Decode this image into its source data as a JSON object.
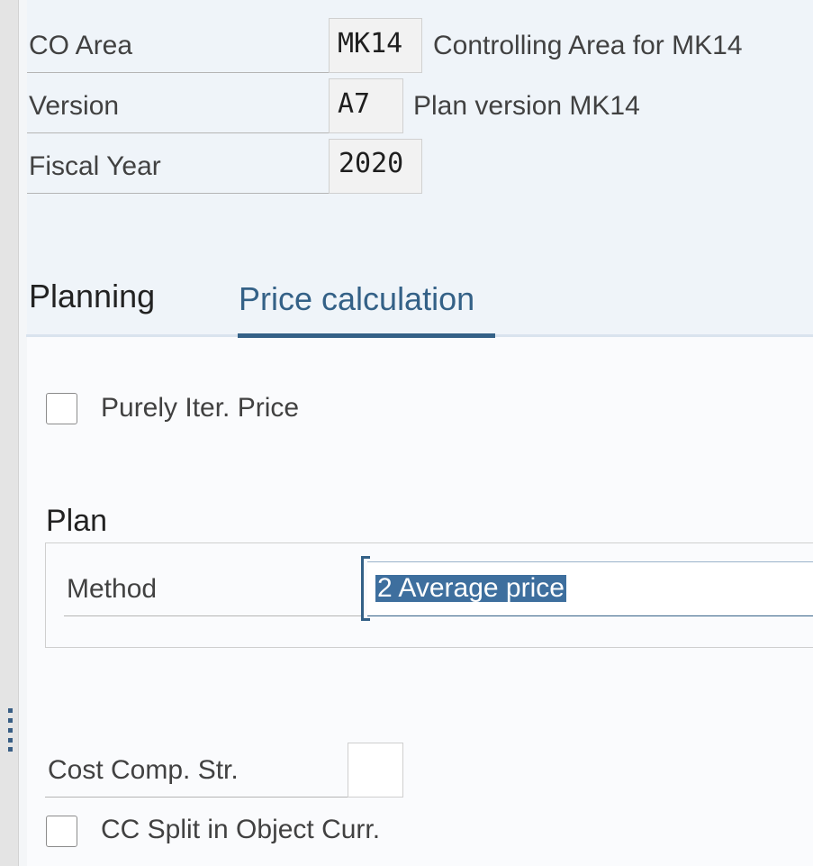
{
  "header": {
    "fields": [
      {
        "label": "CO Area",
        "value": "MK14",
        "description": "Controlling Area for MK14"
      },
      {
        "label": "Version",
        "value": "A7",
        "description": "Plan version MK14"
      },
      {
        "label": "Fiscal Year",
        "value": "2020"
      }
    ]
  },
  "tabs": [
    "Planning",
    "Price calculation"
  ],
  "content": {
    "purely_iter_price": "Purely Iter. Price",
    "plan": {
      "title": "Plan",
      "method_label": "Method",
      "method_value": "2 Average price"
    },
    "cost_comp_str": "Cost Comp. Str.",
    "cc_split": "CC Split in Object Curr."
  }
}
